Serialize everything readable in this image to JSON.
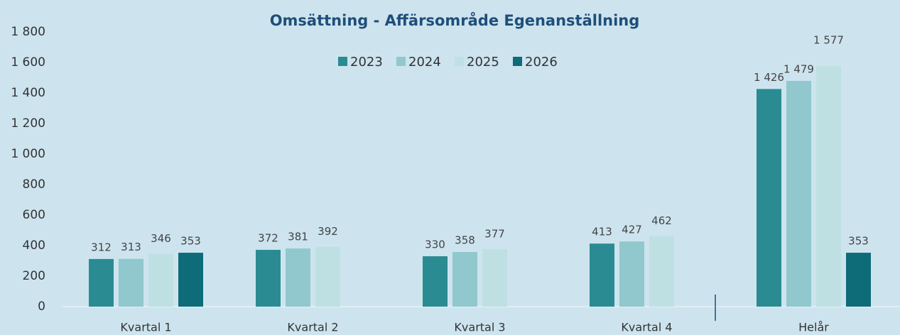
{
  "chart_data": {
    "type": "bar",
    "title": "Omsättning - Affärsområde Egenanställning",
    "categories": [
      "Kvartal 1",
      "Kvartal 2",
      "Kvartal 3",
      "Kvartal 4",
      "Helår"
    ],
    "series": [
      {
        "name": "2023",
        "color": "#2a8c92",
        "values": [
          312,
          372,
          330,
          413,
          1426
        ],
        "value_labels": [
          "312",
          "372",
          "330",
          "413",
          "1 426"
        ]
      },
      {
        "name": "2024",
        "color": "#90c8ce",
        "values": [
          313,
          381,
          358,
          427,
          1479
        ],
        "value_labels": [
          "313",
          "381",
          "358",
          "427",
          "1 479"
        ]
      },
      {
        "name": "2025",
        "color": "#bfe0e2",
        "values": [
          346,
          392,
          377,
          462,
          1577
        ],
        "value_labels": [
          "346",
          "392",
          "377",
          "462",
          "1 577"
        ]
      },
      {
        "name": "2026",
        "color": "#0e6b78",
        "values": [
          353,
          null,
          null,
          null,
          353
        ],
        "value_labels": [
          "353",
          null,
          null,
          null,
          "353"
        ]
      }
    ],
    "ylim": [
      0,
      1800
    ],
    "yticks": [
      0,
      200,
      400,
      600,
      800,
      {
        "value": 1000,
        "label": "1 000"
      },
      {
        "value": 1200,
        "label": "1 200"
      },
      {
        "value": 1400,
        "label": "1 400"
      },
      {
        "value": 1600,
        "label": "1 600"
      },
      {
        "value": 1800,
        "label": "1 800"
      }
    ],
    "grid": false,
    "legend": "top"
  }
}
